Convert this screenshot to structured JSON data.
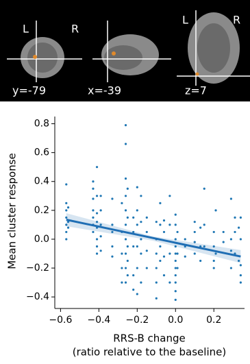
{
  "brain_panel": {
    "labels": [
      "L",
      "R",
      "y=-79",
      "x=-39",
      "z=7",
      "L",
      "R"
    ]
  },
  "chart_data": {
    "type": "scatter",
    "y_label": "Mean cluster response",
    "x_label": "RRS-B change",
    "x_sublabel": "(ratio relative to the baseline)",
    "xlim": [
      -0.63,
      0.36
    ],
    "ylim": [
      -0.48,
      0.85
    ],
    "xticks": [
      {
        "value": -0.6,
        "label": "−0.6"
      },
      {
        "value": -0.4,
        "label": "−0.4"
      },
      {
        "value": -0.2,
        "label": "−0.2"
      },
      {
        "value": 0,
        "label": "0.0"
      },
      0.2
    ],
    "yticks": [
      {
        "value": -0.4,
        "label": "−0.4"
      },
      {
        "value": -0.2,
        "label": "−0.2"
      },
      {
        "value": 0,
        "label": "0.0"
      },
      0.2,
      0.4,
      0.6,
      0.8
    ],
    "x": [
      -0.57,
      -0.57,
      -0.57,
      -0.57,
      -0.57,
      -0.57,
      -0.57,
      -0.56,
      -0.56,
      -0.56,
      -0.43,
      -0.43,
      -0.43,
      -0.43,
      -0.43,
      -0.43,
      -0.43,
      -0.41,
      -0.41,
      -0.41,
      -0.41,
      -0.41,
      -0.41,
      -0.41,
      -0.41,
      -0.39,
      -0.39,
      -0.39,
      -0.39,
      -0.39,
      -0.33,
      -0.33,
      -0.33,
      -0.33,
      -0.33,
      -0.28,
      -0.28,
      -0.28,
      -0.28,
      -0.28,
      -0.26,
      -0.26,
      -0.26,
      -0.26,
      -0.26,
      -0.26,
      -0.26,
      -0.26,
      -0.26,
      -0.26,
      -0.25,
      -0.25,
      -0.25,
      -0.25,
      -0.25,
      -0.22,
      -0.22,
      -0.22,
      -0.22,
      -0.22,
      -0.2,
      -0.2,
      -0.2,
      -0.2,
      -0.2,
      -0.2,
      -0.18,
      -0.18,
      -0.18,
      -0.18,
      -0.18,
      -0.15,
      -0.15,
      -0.15,
      -0.15,
      -0.1,
      -0.1,
      -0.1,
      -0.1,
      -0.1,
      -0.1,
      -0.08,
      -0.08,
      -0.08,
      -0.08,
      -0.06,
      -0.06,
      -0.06,
      -0.06,
      -0.03,
      -0.03,
      -0.03,
      -0.03,
      0,
      0,
      0,
      0,
      0,
      0,
      0,
      0,
      0,
      0,
      0,
      0.01,
      0.01,
      0.01,
      0.05,
      0.05,
      0.05,
      0.1,
      0.1,
      0.1,
      0.1,
      0.13,
      0.13,
      0.13,
      0.15,
      0.15,
      0.15,
      0.2,
      0.2,
      0.2,
      0.2,
      0.21,
      0.21,
      0.25,
      0.25,
      0.29,
      0.29,
      0.29,
      0.29,
      0.31,
      0.31,
      0.31,
      0.33,
      0.33,
      0.34,
      0.34,
      0.34,
      0.34,
      0.34
    ],
    "series": [
      {
        "color": "#1f77b4",
        "values": [
          0.38,
          0.25,
          0.2,
          0.15,
          0.1,
          0.05,
          0.0,
          0.22,
          0.12,
          0.08,
          0.4,
          0.35,
          0.28,
          0.2,
          0.15,
          0.1,
          0.05,
          0.5,
          0.3,
          0.18,
          0.12,
          0.08,
          0.0,
          -0.05,
          -0.1,
          0.3,
          0.2,
          0.1,
          0.02,
          -0.08,
          0.28,
          0.1,
          0.05,
          -0.05,
          -0.12,
          0.25,
          0.05,
          -0.1,
          -0.2,
          -0.3,
          0.79,
          0.66,
          0.42,
          0.3,
          0.2,
          0.1,
          0.0,
          -0.1,
          -0.2,
          -0.3,
          0.35,
          0.15,
          -0.05,
          -0.15,
          -0.25,
          0.15,
          0.05,
          -0.05,
          -0.25,
          -0.35,
          0.36,
          0.2,
          0.1,
          -0.05,
          -0.2,
          -0.38,
          0.3,
          0.12,
          0.0,
          -0.1,
          -0.3,
          0.15,
          0.05,
          -0.08,
          -0.2,
          0.12,
          0.0,
          -0.1,
          -0.2,
          -0.3,
          -0.41,
          0.25,
          0.1,
          -0.05,
          -0.15,
          0.13,
          0.05,
          -0.12,
          -0.25,
          0.3,
          0.1,
          -0.1,
          -0.3,
          0.17,
          0.1,
          0.0,
          -0.05,
          -0.1,
          -0.15,
          -0.2,
          -0.25,
          -0.3,
          -0.36,
          -0.42,
          0.05,
          -0.1,
          -0.2,
          0.0,
          -0.05,
          -0.12,
          0.12,
          0.05,
          -0.02,
          -0.1,
          0.08,
          -0.05,
          -0.15,
          0.35,
          0.1,
          -0.05,
          0.05,
          -0.05,
          -0.15,
          -0.2,
          0.2,
          -0.1,
          0.05,
          -0.02,
          0.28,
          0.0,
          -0.08,
          -0.2,
          0.15,
          0.05,
          -0.1,
          0.08,
          -0.15,
          0.15,
          0.0,
          -0.18,
          -0.25,
          -0.3
        ]
      }
    ],
    "fit": {
      "color": "#1f6eb4",
      "x": [
        -0.57,
        0.34
      ],
      "y": [
        0.135,
        -0.12
      ],
      "band_x": [
        -0.57,
        -0.12,
        0.34
      ],
      "ci_upper": [
        0.18,
        0.02,
        -0.075
      ],
      "ci_lower": [
        0.09,
        -0.01,
        -0.165
      ]
    }
  }
}
